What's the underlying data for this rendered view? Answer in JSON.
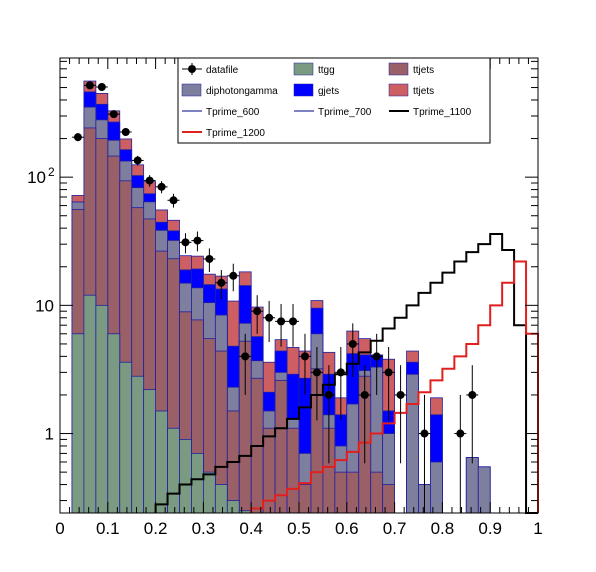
{
  "chart_data": {
    "type": "bar",
    "title": "",
    "xlabel": "",
    "ylabel": "",
    "xlim": [
      0,
      1
    ],
    "ylim": [
      0.24,
      850
    ],
    "log_y": true,
    "grid": false,
    "legend_placement": "top-center",
    "x_ticks": [
      "0",
      "0.1",
      "0.2",
      "0.3",
      "0.4",
      "0.5",
      "0.6",
      "0.7",
      "0.8",
      "0.9",
      "1"
    ],
    "y_ticks": [
      {
        "value": 1,
        "label": "1",
        "sup": ""
      },
      {
        "value": 10,
        "label": "10",
        "sup": ""
      },
      {
        "value": 100,
        "label": "10",
        "sup": "2"
      }
    ],
    "bins": [
      0.025,
      0.05,
      0.075,
      0.1,
      0.125,
      0.15,
      0.175,
      0.2,
      0.225,
      0.25,
      0.275,
      0.3,
      0.325,
      0.35,
      0.375,
      0.4,
      0.425,
      0.45,
      0.475,
      0.5,
      0.525,
      0.55,
      0.575,
      0.6,
      0.625,
      0.65,
      0.675,
      0.7,
      0.725,
      0.75,
      0.775,
      0.8,
      0.825,
      0.85,
      0.875,
      0.9,
      0.925,
      0.95,
      0.975,
      1.0
    ],
    "stacked_series": [
      {
        "name": "ttgg",
        "fill": "#7a9b82",
        "values": [
          6,
          12,
          10,
          6,
          3.6,
          2.8,
          2.2,
          1.5,
          1.1,
          0.9,
          0.7,
          0.5,
          0.4,
          0.3,
          0.25,
          0.2,
          0,
          0,
          0,
          0,
          0,
          0,
          0,
          0,
          0,
          0,
          0,
          0,
          0,
          0,
          0,
          0,
          0,
          0,
          0,
          0,
          0,
          0,
          0
        ]
      },
      {
        "name": "ttjets",
        "fill": "#9a6068",
        "values": [
          50,
          230,
          190,
          140,
          90,
          55,
          45,
          25,
          22,
          8,
          7,
          5,
          4,
          1.2,
          5,
          2.5,
          1.1,
          2.6,
          1.1,
          0.4,
          3.2,
          1.1,
          0.5,
          0.5,
          2.8,
          0.5,
          0.4,
          0,
          0,
          0,
          0,
          0,
          0,
          0,
          0,
          0,
          0,
          0,
          0
        ]
      },
      {
        "name": "diphotongamma",
        "fill": "#7e7e9e",
        "values": [
          8,
          110,
          80,
          48,
          40,
          25,
          17,
          12,
          9,
          6,
          6,
          5,
          4,
          0.8,
          2,
          1,
          0.4,
          0.4,
          0.2,
          0.3,
          2.8,
          0.3,
          0.3,
          1.2,
          0.3,
          2.8,
          0.6,
          0,
          2.9,
          0.4,
          0.6,
          0,
          0,
          0.65,
          0.55,
          0,
          0,
          0,
          0
        ]
      },
      {
        "name": "gjets",
        "fill": "#0000ff",
        "values": [
          0,
          110,
          90,
          75,
          30,
          20,
          10,
          6,
          6,
          4,
          5.5,
          4,
          5,
          2.5,
          7,
          2,
          0.6,
          1.4,
          1.6,
          2,
          3.5,
          1.5,
          0.6,
          2.5,
          1,
          0.8,
          0.5,
          0,
          0.7,
          0,
          0.8,
          0,
          0,
          0,
          0,
          0,
          0,
          0,
          0
        ]
      },
      {
        "name": "ttjets",
        "fill": "#cd5f62",
        "values": [
          8,
          100,
          80,
          60,
          35,
          22,
          18,
          11,
          8,
          5.5,
          5,
          3,
          3.5,
          6,
          4,
          4,
          1.5,
          1,
          1.8,
          1.7,
          1.4,
          1.4,
          0.5,
          2.1,
          1.4,
          0,
          2.3,
          0,
          0.8,
          0,
          0.5,
          0,
          0,
          0,
          0,
          0,
          0,
          0,
          0
        ]
      }
    ],
    "line_series": [
      {
        "name": "Tprime_600",
        "color": "#00008b",
        "width": 1,
        "values": []
      },
      {
        "name": "Tprime_700",
        "color": "#00008b",
        "width": 1,
        "values": []
      },
      {
        "name": "Tprime_1100",
        "color": "#000000",
        "width": 2,
        "values": [
          0,
          0,
          0,
          0,
          0,
          0,
          0,
          0.28,
          0.34,
          0.4,
          0.44,
          0.48,
          0.55,
          0.6,
          0.67,
          0.8,
          0.95,
          1.1,
          1.3,
          1.6,
          2,
          2.4,
          2.9,
          3.5,
          4.3,
          5.3,
          6.6,
          8,
          10,
          12.5,
          15,
          18,
          22,
          26,
          30,
          36,
          27,
          7,
          0
        ]
      },
      {
        "name": "Tprime_1200",
        "color": "#e01f1f",
        "width": 2,
        "values": [
          0,
          0,
          0,
          0,
          0,
          0,
          0,
          0,
          0,
          0,
          0,
          0,
          0,
          0,
          0,
          0.26,
          0.3,
          0.33,
          0.37,
          0.41,
          0.5,
          0.55,
          0.62,
          0.72,
          0.85,
          1,
          1.2,
          1.45,
          1.7,
          2.1,
          2.6,
          3.2,
          4,
          5,
          7,
          10,
          15,
          22,
          6
        ]
      }
    ],
    "data_series": {
      "name": "datafile",
      "color": "#000000",
      "x": [
        0.0375,
        0.0625,
        0.0875,
        0.1125,
        0.1375,
        0.1625,
        0.1875,
        0.2125,
        0.2375,
        0.2625,
        0.2875,
        0.3125,
        0.3375,
        0.3625,
        0.3875,
        0.4125,
        0.4375,
        0.4625,
        0.4875,
        0.5125,
        0.5375,
        0.5625,
        0.5875,
        0.6125,
        0.6375,
        0.6625,
        0.6875,
        0.7125,
        0.7625,
        0.8375,
        0.8625
      ],
      "y": [
        205,
        520,
        505,
        310,
        225,
        135,
        94,
        84,
        66,
        31,
        32,
        23,
        15,
        17,
        4,
        9,
        8,
        7.5,
        7.5,
        4,
        3,
        2,
        3,
        5,
        2,
        4,
        3,
        2,
        1,
        1,
        2
      ]
    },
    "legend": [
      {
        "label": "datafile",
        "kind": "marker",
        "color": "#000000"
      },
      {
        "label": "ttgg",
        "kind": "box",
        "color": "#7a9b82"
      },
      {
        "label": "ttjets",
        "kind": "box",
        "color": "#9a6068"
      },
      {
        "label": "diphotongamma",
        "kind": "box",
        "color": "#7e7e9e"
      },
      {
        "label": "gjets",
        "kind": "box",
        "color": "#0000ff"
      },
      {
        "label": "ttjets",
        "kind": "box",
        "color": "#cd5f62"
      },
      {
        "label": "Tprime_600",
        "kind": "line",
        "color": "#00008b"
      },
      {
        "label": "Tprime_700",
        "kind": "line",
        "color": "#00008b"
      },
      {
        "label": "Tprime_1100",
        "kind": "line",
        "color": "#000000"
      },
      {
        "label": "Tprime_1200",
        "kind": "line",
        "color": "#e01f1f"
      }
    ]
  }
}
